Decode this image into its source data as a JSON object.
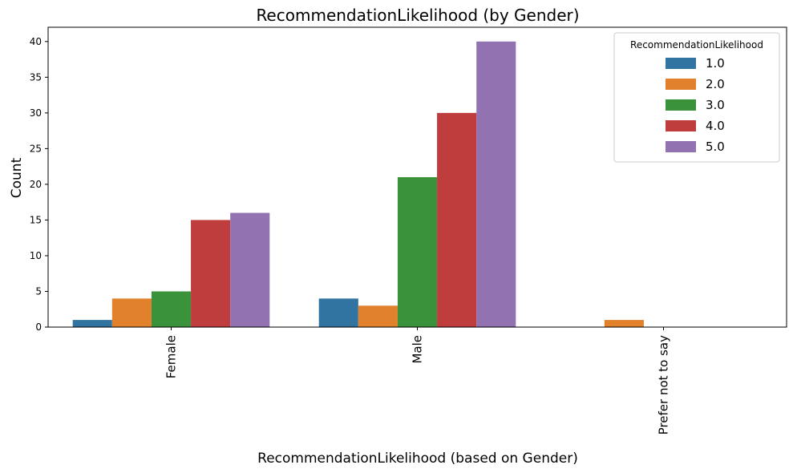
{
  "chart_data": {
    "type": "bar",
    "title": "RecommendationLikelihood (by Gender)",
    "xlabel": "RecommendationLikelihood (based on Gender)",
    "ylabel": "Count",
    "categories": [
      "Female",
      "Male",
      "Prefer not to say"
    ],
    "ylim": [
      0,
      42
    ],
    "yticks": [
      0,
      5,
      10,
      15,
      20,
      25,
      30,
      35,
      40
    ],
    "legend": {
      "title": "RecommendationLikelihood",
      "position": "top-right"
    },
    "grid": false,
    "series": [
      {
        "name": "1.0",
        "color": "#3274a1",
        "values": [
          1,
          4,
          0
        ]
      },
      {
        "name": "2.0",
        "color": "#e1812c",
        "values": [
          4,
          3,
          1
        ]
      },
      {
        "name": "3.0",
        "color": "#3a923a",
        "values": [
          5,
          21,
          0
        ]
      },
      {
        "name": "4.0",
        "color": "#c03d3e",
        "values": [
          15,
          30,
          0
        ]
      },
      {
        "name": "5.0",
        "color": "#9372b2",
        "values": [
          16,
          40,
          0
        ]
      }
    ]
  }
}
